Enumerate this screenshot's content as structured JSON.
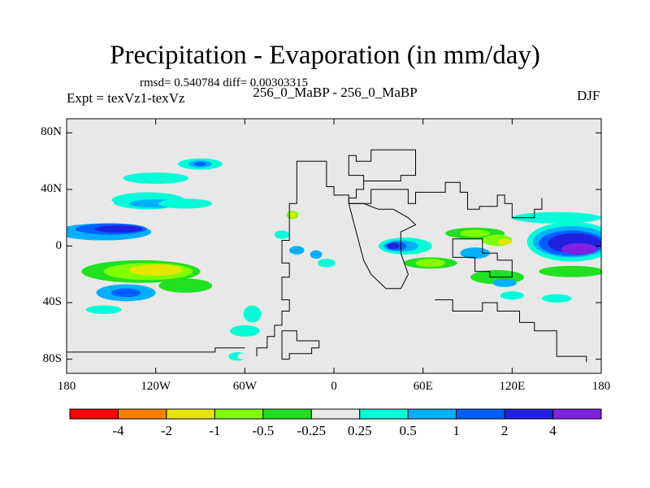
{
  "chart_data": {
    "type": "heatmap",
    "title": "Precipitation - Evaporation (in mm/day)",
    "stats_text": "rmsd= 0.540784 diff= 0.00303315",
    "left_label": "Expt = texVz1-texVz",
    "center_label": "256_0_MaBP - 256_0_MaBP",
    "right_label": "DJF",
    "x_ticks": [
      "180",
      "120W",
      "60W",
      "0",
      "60E",
      "120E",
      "180"
    ],
    "x_tick_values": [
      -180,
      -120,
      -60,
      0,
      60,
      120,
      180
    ],
    "y_ticks": [
      "80N",
      "40N",
      "0",
      "40S",
      "80S"
    ],
    "y_tick_values": [
      80,
      40,
      0,
      -40,
      -80
    ],
    "xlim": [
      -180,
      180
    ],
    "ylim": [
      -90,
      90
    ],
    "colorbar": {
      "levels": [
        "-4",
        "-2",
        "-1",
        "-0.5",
        "-0.25",
        "0.25",
        "0.5",
        "1",
        "2",
        "4"
      ],
      "colors": [
        "#ff0000",
        "#ff8000",
        "#e6e600",
        "#80ff00",
        "#20e020",
        "#e8e8e8",
        "#00ffd8",
        "#00b0ff",
        "#0060ff",
        "#2020e0",
        "#8020e0"
      ]
    },
    "background_color": "#e8e8e8",
    "fields": [
      {
        "lon": -155,
        "lat": 10,
        "rlon": 32,
        "rlat": 6,
        "level": 0.5
      },
      {
        "lon": -150,
        "lat": 12,
        "rlon": 24,
        "rlat": 4,
        "level": 1
      },
      {
        "lon": -145,
        "lat": 12,
        "rlon": 16,
        "rlat": 2.5,
        "level": 2
      },
      {
        "lon": -125,
        "lat": 32,
        "rlon": 25,
        "rlat": 6,
        "level": 0.25
      },
      {
        "lon": -120,
        "lat": 30,
        "rlon": 18,
        "rlat": 3,
        "level": 0.5
      },
      {
        "lon": -160,
        "lat": 30,
        "rlon": 12,
        "rlat": 4,
        "level": -0.25
      },
      {
        "lon": -100,
        "lat": 30,
        "rlon": 18,
        "rlat": 3.5,
        "level": 0.25
      },
      {
        "lon": -90,
        "lat": 58,
        "rlon": 15,
        "rlat": 4,
        "level": 0.25
      },
      {
        "lon": -90,
        "lat": 58,
        "rlon": 8,
        "rlat": 2.5,
        "level": 0.5
      },
      {
        "lon": -90,
        "lat": 58,
        "rlon": 4,
        "rlat": 1.5,
        "level": 1
      },
      {
        "lon": -120,
        "lat": 48,
        "rlon": 22,
        "rlat": 4,
        "level": 0.25
      },
      {
        "lon": -150,
        "lat": -16,
        "rlon": 30,
        "rlat": 6,
        "level": -0.25
      },
      {
        "lon": -130,
        "lat": -18,
        "rlon": 40,
        "rlat": 8,
        "level": -0.5
      },
      {
        "lon": -125,
        "lat": -18,
        "rlon": 30,
        "rlat": 6,
        "level": -1
      },
      {
        "lon": -120,
        "lat": -17,
        "rlon": 18,
        "rlat": 4,
        "level": -2
      },
      {
        "lon": -140,
        "lat": -33,
        "rlon": 20,
        "rlat": 6,
        "level": 0.5
      },
      {
        "lon": -140,
        "lat": -33,
        "rlon": 10,
        "rlat": 3,
        "level": 1
      },
      {
        "lon": -100,
        "lat": -28,
        "rlon": 18,
        "rlat": 5,
        "level": -0.5
      },
      {
        "lon": -155,
        "lat": -45,
        "rlon": 12,
        "rlat": 3,
        "level": 0.25
      },
      {
        "lon": -28,
        "lat": 22,
        "rlon": 4,
        "rlat": 3,
        "level": -1
      },
      {
        "lon": -28,
        "lat": 22,
        "rlon": 2,
        "rlat": 2,
        "level": -2
      },
      {
        "lon": -35,
        "lat": 8,
        "rlon": 5,
        "rlat": 3,
        "level": 0.25
      },
      {
        "lon": -25,
        "lat": -3,
        "rlon": 5,
        "rlat": 3,
        "level": 0.5
      },
      {
        "lon": -12,
        "lat": -6,
        "rlon": 4,
        "rlat": 3,
        "level": 0.5
      },
      {
        "lon": -5,
        "lat": -12,
        "rlon": 6,
        "rlat": 3,
        "level": 0.25
      },
      {
        "lon": -60,
        "lat": -60,
        "rlon": 10,
        "rlat": 4,
        "level": 0.25
      },
      {
        "lon": -65,
        "lat": -78,
        "rlon": 6,
        "rlat": 3,
        "level": 0.25
      },
      {
        "lon": -62,
        "lat": -78,
        "rlon": 3,
        "rlat": 2,
        "level": -0.25
      },
      {
        "lon": -55,
        "lat": -48,
        "rlon": 6,
        "rlat": 6,
        "level": 0.25
      },
      {
        "lon": 48,
        "lat": 0,
        "rlon": 18,
        "rlat": 6,
        "level": 0.25
      },
      {
        "lon": 45,
        "lat": 0,
        "rlon": 12,
        "rlat": 4,
        "level": 0.5
      },
      {
        "lon": 42,
        "lat": 0,
        "rlon": 7,
        "rlat": 3,
        "level": 1
      },
      {
        "lon": 40,
        "lat": 0,
        "rlon": 4,
        "rlat": 2,
        "level": 2
      },
      {
        "lon": 65,
        "lat": -12,
        "rlon": 25,
        "rlat": 6,
        "level": -0.25
      },
      {
        "lon": 65,
        "lat": -12,
        "rlon": 18,
        "rlat": 4,
        "level": -0.5
      },
      {
        "lon": 65,
        "lat": -12,
        "rlon": 10,
        "rlat": 3,
        "level": -1
      },
      {
        "lon": 90,
        "lat": 10,
        "rlon": 25,
        "rlat": 6,
        "level": -0.25
      },
      {
        "lon": 95,
        "lat": 9,
        "rlon": 20,
        "rlat": 4,
        "level": -0.5
      },
      {
        "lon": 95,
        "lat": 9,
        "rlon": 10,
        "rlat": 2.5,
        "level": -1
      },
      {
        "lon": 110,
        "lat": 4,
        "rlon": 10,
        "rlat": 4,
        "level": -1
      },
      {
        "lon": 115,
        "lat": 3,
        "rlon": 5,
        "rlat": 2,
        "level": -2
      },
      {
        "lon": 110,
        "lat": -20,
        "rlon": 25,
        "rlat": 6,
        "level": -0.25
      },
      {
        "lon": 110,
        "lat": -22,
        "rlon": 18,
        "rlat": 5,
        "level": -0.5
      },
      {
        "lon": 115,
        "lat": -26,
        "rlon": 8,
        "rlat": 3,
        "level": 0.5
      },
      {
        "lon": 95,
        "lat": -5,
        "rlon": 10,
        "rlat": 4,
        "level": 0.5
      },
      {
        "lon": 160,
        "lat": 3,
        "rlon": 30,
        "rlat": 14,
        "level": 0.25
      },
      {
        "lon": 160,
        "lat": 3,
        "rlon": 26,
        "rlat": 11,
        "level": 0.5
      },
      {
        "lon": 160,
        "lat": 2,
        "rlon": 22,
        "rlat": 9,
        "level": 1
      },
      {
        "lon": 162,
        "lat": 2,
        "rlon": 18,
        "rlat": 7,
        "level": 2
      },
      {
        "lon": 165,
        "lat": -2,
        "rlon": 12,
        "rlat": 4,
        "level": 4
      },
      {
        "lon": 160,
        "lat": -18,
        "rlon": 22,
        "rlat": 4,
        "level": -0.5
      },
      {
        "lon": 150,
        "lat": 20,
        "rlon": 30,
        "rlat": 4,
        "level": 0.25
      },
      {
        "lon": 85,
        "lat": 26,
        "rlon": 8,
        "rlat": 3,
        "level": -0.25
      },
      {
        "lon": 150,
        "lat": -37,
        "rlon": 10,
        "rlat": 3,
        "level": 0.25
      },
      {
        "lon": 165,
        "lat": -67,
        "rlon": 8,
        "rlat": 2,
        "level": -0.25
      },
      {
        "lon": 120,
        "lat": -35,
        "rlon": 8,
        "rlat": 3,
        "level": 0.25
      }
    ],
    "coastlines": [
      [
        [
          -60,
          -72
        ],
        [
          -80,
          -72
        ],
        [
          -80,
          -75
        ],
        [
          -180,
          -75
        ]
      ],
      [
        [
          -52,
          -78
        ],
        [
          -52,
          -72
        ],
        [
          -45,
          -72
        ],
        [
          -45,
          -64
        ],
        [
          -40,
          -64
        ],
        [
          -40,
          -56
        ],
        [
          -35,
          -56
        ],
        [
          -35,
          -46
        ],
        [
          -30,
          -46
        ],
        [
          -30,
          -38
        ],
        [
          -35,
          -38
        ],
        [
          -35,
          -22
        ],
        [
          -30,
          -22
        ],
        [
          -30,
          -12
        ],
        [
          -35,
          -12
        ],
        [
          -35,
          4
        ],
        [
          -30,
          4
        ],
        [
          -30,
          30
        ],
        [
          -25,
          30
        ],
        [
          -25,
          60
        ],
        [
          -5,
          60
        ],
        [
          -5,
          42
        ],
        [
          0,
          42
        ],
        [
          0,
          36
        ],
        [
          10,
          36
        ],
        [
          10,
          30
        ],
        [
          25,
          30
        ],
        [
          25,
          40
        ],
        [
          50,
          40
        ],
        [
          50,
          30
        ],
        [
          55,
          30
        ],
        [
          55,
          38
        ],
        [
          75,
          38
        ],
        [
          75,
          45
        ],
        [
          85,
          45
        ],
        [
          85,
          38
        ],
        [
          90,
          38
        ],
        [
          90,
          26
        ],
        [
          98,
          26
        ],
        [
          98,
          28
        ],
        [
          110,
          28
        ],
        [
          110,
          36
        ],
        [
          115,
          36
        ],
        [
          115,
          30
        ],
        [
          120,
          30
        ],
        [
          120,
          20
        ],
        [
          135,
          20
        ],
        [
          135,
          26
        ],
        [
          140,
          26
        ],
        [
          140,
          34
        ]
      ],
      [
        [
          10,
          30
        ],
        [
          10,
          34
        ],
        [
          15,
          34
        ],
        [
          15,
          40
        ],
        [
          20,
          40
        ],
        [
          20,
          46
        ],
        [
          45,
          46
        ],
        [
          45,
          50
        ],
        [
          55,
          50
        ],
        [
          55,
          68
        ],
        [
          25,
          68
        ],
        [
          25,
          60
        ],
        [
          15,
          60
        ],
        [
          15,
          64
        ],
        [
          10,
          64
        ],
        [
          10,
          50
        ],
        [
          20,
          50
        ],
        [
          20,
          46
        ]
      ],
      [
        [
          20,
          30
        ],
        [
          10,
          30
        ],
        [
          15,
          10
        ],
        [
          20,
          -10
        ],
        [
          25,
          -20
        ],
        [
          35,
          -30
        ],
        [
          45,
          -30
        ],
        [
          50,
          -20
        ],
        [
          45,
          -5
        ],
        [
          45,
          10
        ],
        [
          55,
          15
        ],
        [
          50,
          20
        ],
        [
          40,
          26
        ],
        [
          30,
          26
        ],
        [
          20,
          30
        ]
      ],
      [
        [
          80,
          -8
        ],
        [
          95,
          -8
        ],
        [
          95,
          -18
        ],
        [
          105,
          -18
        ],
        [
          105,
          -22
        ],
        [
          120,
          -22
        ],
        [
          120,
          -10
        ],
        [
          110,
          -10
        ],
        [
          110,
          -5
        ],
        [
          100,
          -5
        ],
        [
          100,
          5
        ],
        [
          80,
          5
        ],
        [
          80,
          -8
        ]
      ],
      [
        [
          68,
          -38
        ],
        [
          80,
          -38
        ],
        [
          80,
          -46
        ],
        [
          100,
          -46
        ],
        [
          100,
          -40
        ],
        [
          110,
          -40
        ],
        [
          110,
          -46
        ],
        [
          125,
          -46
        ],
        [
          125,
          -54
        ],
        [
          135,
          -54
        ],
        [
          135,
          -60
        ],
        [
          150,
          -60
        ],
        [
          150,
          -78
        ],
        [
          170,
          -78
        ],
        [
          170,
          -82
        ]
      ],
      [
        [
          -35,
          -60
        ],
        [
          -25,
          -60
        ],
        [
          -25,
          -67
        ],
        [
          -10,
          -67
        ],
        [
          -10,
          -72
        ],
        [
          -15,
          -72
        ],
        [
          -15,
          -76
        ],
        [
          -30,
          -76
        ],
        [
          -30,
          -80
        ],
        [
          -35,
          -80
        ],
        [
          -35,
          -60
        ]
      ]
    ]
  }
}
